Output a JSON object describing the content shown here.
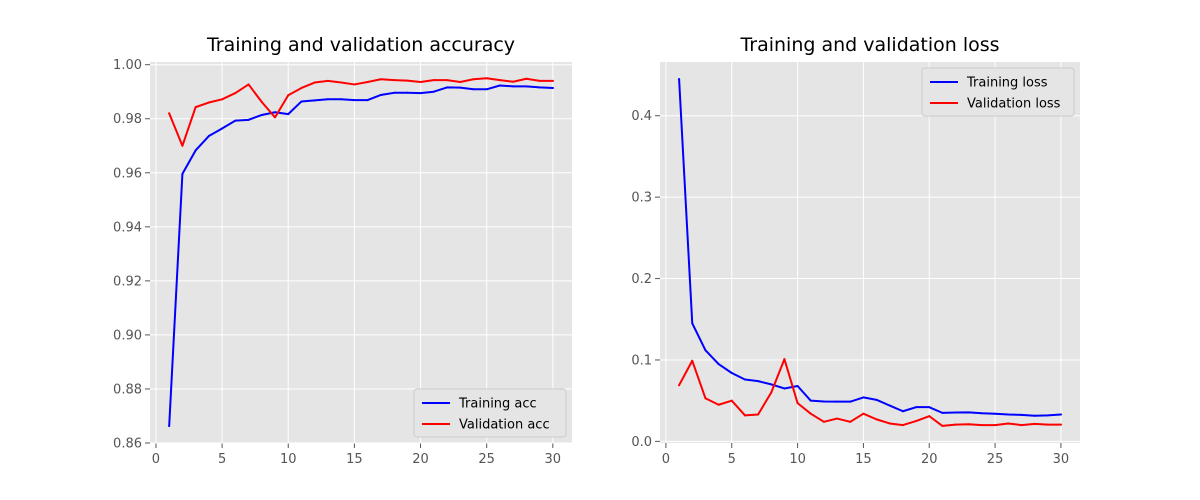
{
  "chart_data": [
    {
      "type": "line",
      "title": "Training and validation accuracy",
      "xlabel": "",
      "ylabel": "",
      "xlim": [
        -0.45,
        31.45
      ],
      "ylim": [
        0.86,
        1.001
      ],
      "xticks": [
        0,
        5,
        10,
        15,
        20,
        25,
        30
      ],
      "yticks": [
        0.86,
        0.88,
        0.9,
        0.92,
        0.94,
        0.96,
        0.98,
        1.0
      ],
      "ytick_labels": [
        "0.86",
        "0.88",
        "0.90",
        "0.92",
        "0.94",
        "0.96",
        "0.98",
        "1.00"
      ],
      "grid": true,
      "legend_position": "lower-right",
      "x": [
        1,
        2,
        3,
        4,
        5,
        6,
        7,
        8,
        9,
        10,
        11,
        12,
        13,
        14,
        15,
        16,
        17,
        18,
        19,
        20,
        21,
        22,
        23,
        24,
        25,
        26,
        27,
        28,
        29,
        30
      ],
      "series": [
        {
          "name": "Training acc",
          "color": "#0000ff",
          "values": [
            0.8663,
            0.9596,
            0.9683,
            0.9736,
            0.9764,
            0.9793,
            0.9796,
            0.9814,
            0.9824,
            0.9817,
            0.9864,
            0.9868,
            0.9872,
            0.9872,
            0.9869,
            0.9869,
            0.9888,
            0.9896,
            0.9896,
            0.9895,
            0.99,
            0.9916,
            0.9915,
            0.9909,
            0.9909,
            0.9923,
            0.992,
            0.992,
            0.9916,
            0.9914
          ]
        },
        {
          "name": "Validation acc",
          "color": "#ff0000",
          "values": [
            0.982,
            0.97,
            0.9843,
            0.986,
            0.9872,
            0.9895,
            0.9927,
            0.9862,
            0.9805,
            0.9887,
            0.9914,
            0.9934,
            0.994,
            0.9934,
            0.9927,
            0.9936,
            0.9946,
            0.9943,
            0.9941,
            0.9936,
            0.9943,
            0.9943,
            0.9936,
            0.9946,
            0.995,
            0.9943,
            0.9937,
            0.9948,
            0.994,
            0.994
          ]
        }
      ]
    },
    {
      "type": "line",
      "title": "Training and validation loss",
      "xlabel": "",
      "ylabel": "",
      "xlim": [
        -0.45,
        31.45
      ],
      "ylim": [
        -0.002,
        0.466
      ],
      "xticks": [
        0,
        5,
        10,
        15,
        20,
        25,
        30
      ],
      "yticks": [
        0.0,
        0.1,
        0.2,
        0.3,
        0.4
      ],
      "ytick_labels": [
        "0.0",
        "0.1",
        "0.2",
        "0.3",
        "0.4"
      ],
      "grid": true,
      "legend_position": "upper-right",
      "x": [
        1,
        2,
        3,
        4,
        5,
        6,
        7,
        8,
        9,
        10,
        11,
        12,
        13,
        14,
        15,
        16,
        17,
        18,
        19,
        20,
        21,
        22,
        23,
        24,
        25,
        26,
        27,
        28,
        29,
        30
      ],
      "series": [
        {
          "name": "Training loss",
          "color": "#0000ff",
          "values": [
            0.445,
            0.145,
            0.112,
            0.095,
            0.084,
            0.076,
            0.074,
            0.07,
            0.065,
            0.068,
            0.05,
            0.049,
            0.0488,
            0.0488,
            0.054,
            0.051,
            0.044,
            0.037,
            0.042,
            0.042,
            0.035,
            0.0355,
            0.0356,
            0.0345,
            0.034,
            0.033,
            0.0325,
            0.0315,
            0.032,
            0.033
          ]
        },
        {
          "name": "Validation loss",
          "color": "#ff0000",
          "values": [
            0.069,
            0.099,
            0.053,
            0.045,
            0.05,
            0.032,
            0.033,
            0.06,
            0.101,
            0.047,
            0.034,
            0.024,
            0.028,
            0.024,
            0.034,
            0.027,
            0.022,
            0.02,
            0.025,
            0.031,
            0.019,
            0.0205,
            0.021,
            0.02,
            0.02,
            0.022,
            0.02,
            0.0215,
            0.0205,
            0.0205
          ]
        }
      ]
    }
  ]
}
